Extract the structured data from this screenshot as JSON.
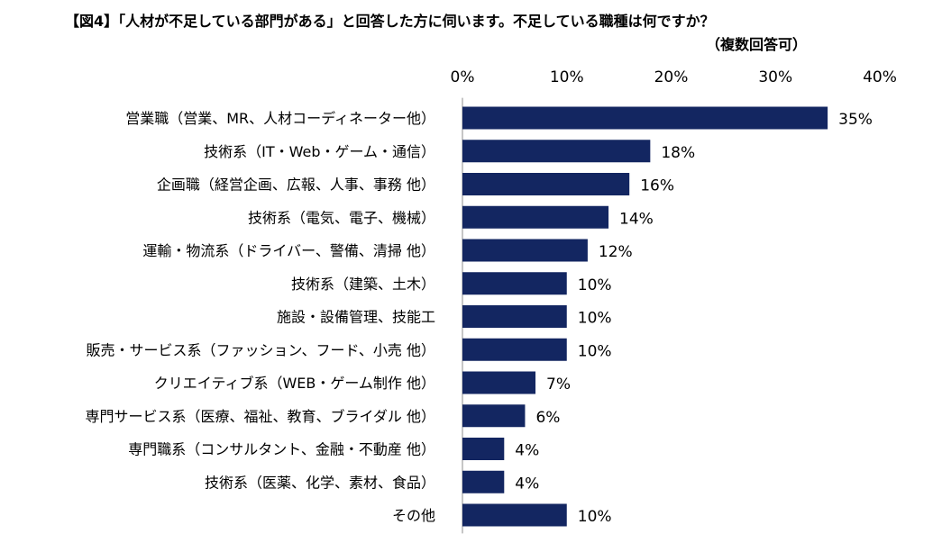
{
  "chart_data": {
    "type": "bar",
    "orientation": "horizontal",
    "title": "【図4】「人材が不足している部門がある」と回答した方に伺います。不足している職種は何ですか？",
    "subtitle": "（複数回答可）",
    "categories": [
      "営業職（営業、MR、人材コーディネーター他）",
      "技術系（IT・Web・ゲーム・通信）",
      "企画職（経営企画、広報、人事、事務 他）",
      "技術系（電気、電子、機械）",
      "運輸・物流系（ドライバー、警備、清掃 他）",
      "技術系（建築、土木）",
      "施設・設備管理、技能工",
      "販売・サービス系（ファッション、フード、小売 他）",
      "クリエイティブ系（WEB・ゲーム制作 他）",
      "専門サービス系（医療、福祉、教育、ブライダル 他）",
      "専門職系（コンサルタント、金融・不動産 他）",
      "技術系（医薬、化学、素材、食品）",
      "その他"
    ],
    "values": [
      35,
      18,
      16,
      14,
      12,
      10,
      10,
      10,
      7,
      6,
      4,
      4,
      10
    ],
    "value_labels": [
      "35%",
      "18%",
      "16%",
      "14%",
      "12%",
      "10%",
      "10%",
      "10%",
      "7%",
      "6%",
      "4%",
      "4%",
      "10%"
    ],
    "xlim": [
      0,
      40
    ],
    "xticks": [
      "0%",
      "10%",
      "20%",
      "30%",
      "40%"
    ],
    "xtick_values": [
      0,
      10,
      20,
      30,
      40
    ],
    "axis_position": "top",
    "grid": false,
    "bar_color": "#132661",
    "xlabel": "",
    "ylabel": ""
  }
}
